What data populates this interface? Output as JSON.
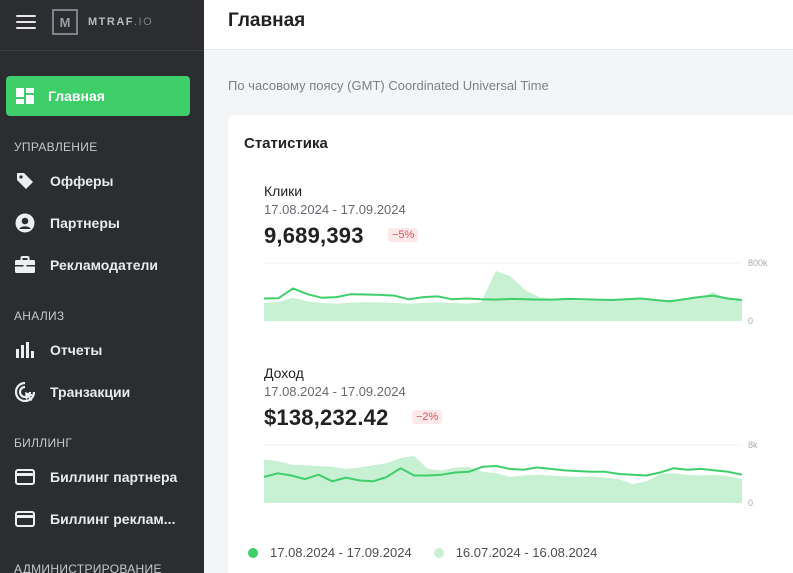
{
  "app": {
    "logo_letter": "M",
    "logo_name": "MTRAF",
    "logo_suffix": ".IO"
  },
  "sidebar": {
    "active": {
      "label": "Главная",
      "icon": "dashboard-icon"
    },
    "sections": [
      {
        "title": "УПРАВЛЕНИЕ",
        "items": [
          {
            "label": "Офферы",
            "icon": "tag-icon"
          },
          {
            "label": "Партнеры",
            "icon": "user-circle-icon"
          },
          {
            "label": "Рекламодатели",
            "icon": "briefcase-icon"
          }
        ]
      },
      {
        "title": "АНАЛИЗ",
        "items": [
          {
            "label": "Отчеты",
            "icon": "bar-chart-icon"
          },
          {
            "label": "Транзакции",
            "icon": "target-cursor-icon"
          }
        ]
      },
      {
        "title": "БИЛЛИНГ",
        "items": [
          {
            "label": "Биллинг партнера",
            "icon": "credit-card-icon"
          },
          {
            "label": "Биллинг реклам...",
            "icon": "credit-card-icon"
          }
        ]
      },
      {
        "title": "АДМИНИСТРИРОВАНИЕ",
        "items": []
      }
    ]
  },
  "header": {
    "title": "Главная"
  },
  "timezone_note": "По часовому поясу (GMT) Coordinated Universal Time",
  "stats": {
    "title": "Статистика",
    "colors": {
      "current": "#3ecf6a",
      "previous": "#c8f1d3"
    },
    "legend": [
      {
        "label": "17.08.2024 - 17.09.2024"
      },
      {
        "label": "16.07.2024 - 16.08.2024"
      }
    ],
    "metrics": [
      {
        "label": "Клики",
        "range": "17.08.2024 - 17.09.2024",
        "value": "9,689,393",
        "change": "−5%",
        "y_max_label": "800k",
        "y_min_label": "0",
        "ylim": [
          0,
          800000
        ],
        "current": [
          310000,
          315000,
          450000,
          370000,
          320000,
          330000,
          370000,
          365000,
          360000,
          350000,
          300000,
          330000,
          340000,
          300000,
          310000,
          300000,
          295000,
          305000,
          300000,
          295000,
          295000,
          305000,
          300000,
          295000,
          290000,
          300000,
          310000,
          290000,
          270000,
          300000,
          330000,
          350000,
          310000,
          290000
        ],
        "previous": [
          250000,
          260000,
          320000,
          270000,
          250000,
          240000,
          250000,
          260000,
          255000,
          250000,
          240000,
          250000,
          255000,
          250000,
          240000,
          260000,
          690000,
          620000,
          430000,
          330000,
          300000,
          290000,
          280000,
          285000,
          290000,
          300000,
          295000,
          285000,
          290000,
          300000,
          310000,
          400000,
          300000,
          290000
        ]
      },
      {
        "label": "Доход",
        "range": "17.08.2024 - 17.09.2024",
        "value": "$138,232.42",
        "change": "−2%",
        "y_max_label": "8k",
        "y_min_label": "0",
        "ylim": [
          0,
          8000
        ],
        "current": [
          3600,
          4100,
          3800,
          3300,
          3900,
          3000,
          3500,
          3100,
          3000,
          3600,
          4800,
          3800,
          3800,
          3900,
          4200,
          4300,
          5000,
          5100,
          4700,
          4600,
          4900,
          4700,
          4500,
          4400,
          4300,
          4300,
          4000,
          3900,
          3800,
          4200,
          4800,
          4600,
          4700,
          4500,
          4300,
          3900
        ],
        "previous": [
          6000,
          5800,
          5300,
          5200,
          5100,
          5000,
          4700,
          4900,
          5200,
          5500,
          6200,
          6500,
          4700,
          4500,
          4900,
          5000,
          4300,
          4100,
          3600,
          3800,
          3900,
          3800,
          3700,
          3600,
          3700,
          3500,
          3300,
          2600,
          3000,
          4000,
          4100,
          3900,
          3800,
          3900,
          3700,
          3300
        ]
      }
    ]
  }
}
